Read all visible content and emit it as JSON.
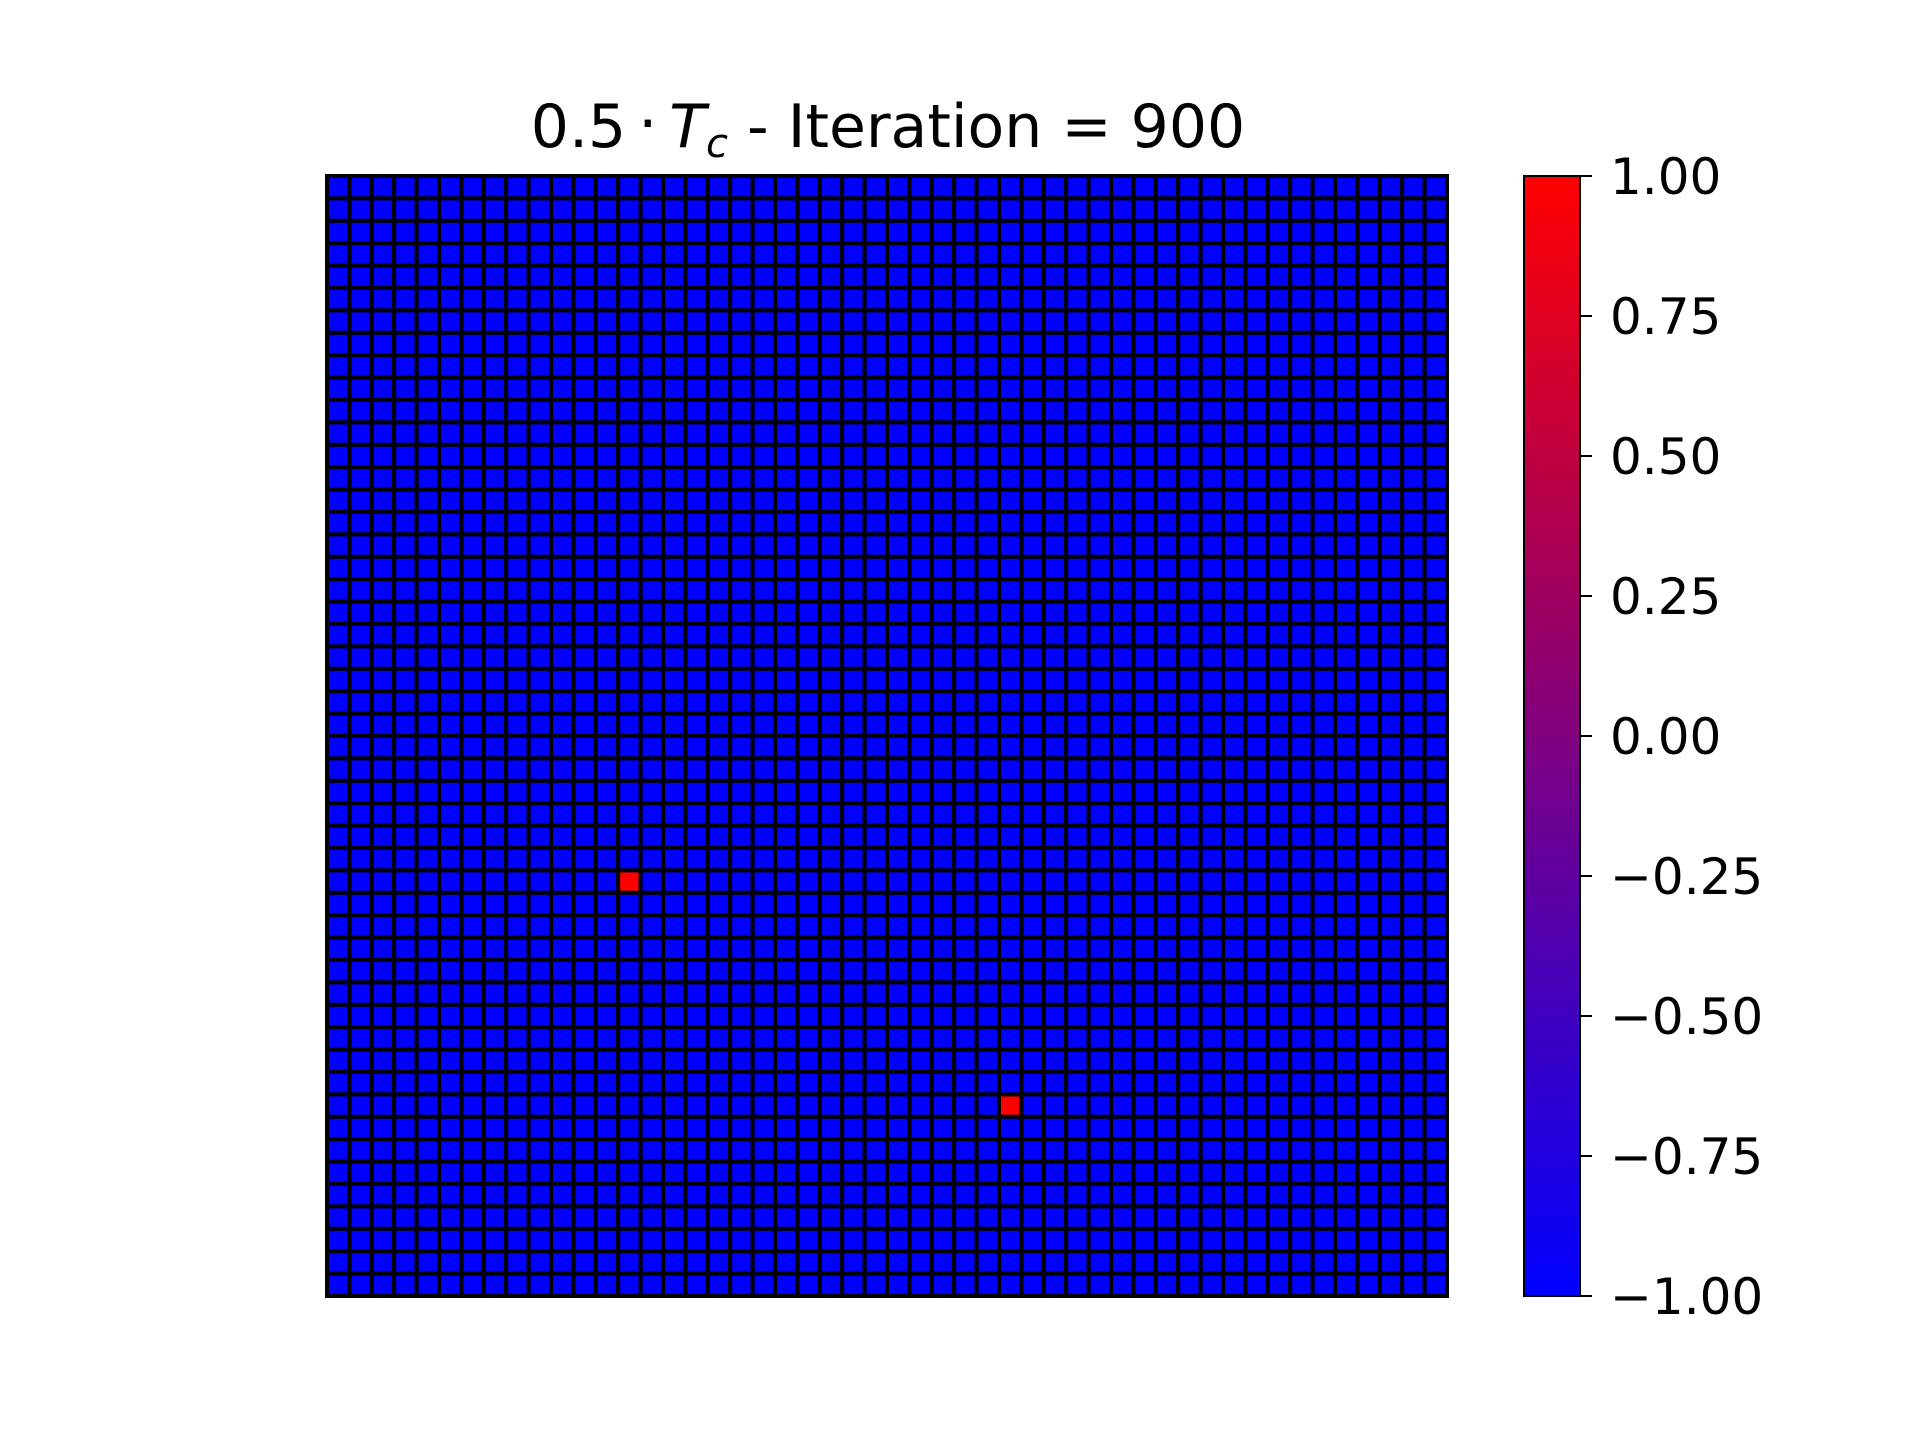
{
  "chart_data": {
    "type": "heatmap",
    "title": {
      "prefix": "0.5",
      "symbol": "T",
      "subscript": "c",
      "suffix": " - Iteration = 900"
    },
    "grid": {
      "rows": 50,
      "cols": 50
    },
    "default_value": -1,
    "cells": [
      {
        "row": 31,
        "col": 13,
        "value": 1
      },
      {
        "row": 41,
        "col": 30,
        "value": 1
      }
    ],
    "value_range": [
      -1,
      1
    ],
    "colormap": {
      "low": "#0000ff",
      "high": "#ff0000"
    },
    "cell_edge_color": "#000000",
    "colorbar": {
      "ticks": [
        1.0,
        0.75,
        0.5,
        0.25,
        0.0,
        -0.25,
        -0.5,
        -0.75,
        -1.0
      ],
      "tick_labels": [
        "1.00",
        "0.75",
        "0.50",
        "0.25",
        "0.00",
        "−0.25",
        "−0.50",
        "−0.75",
        "−1.00"
      ]
    }
  }
}
